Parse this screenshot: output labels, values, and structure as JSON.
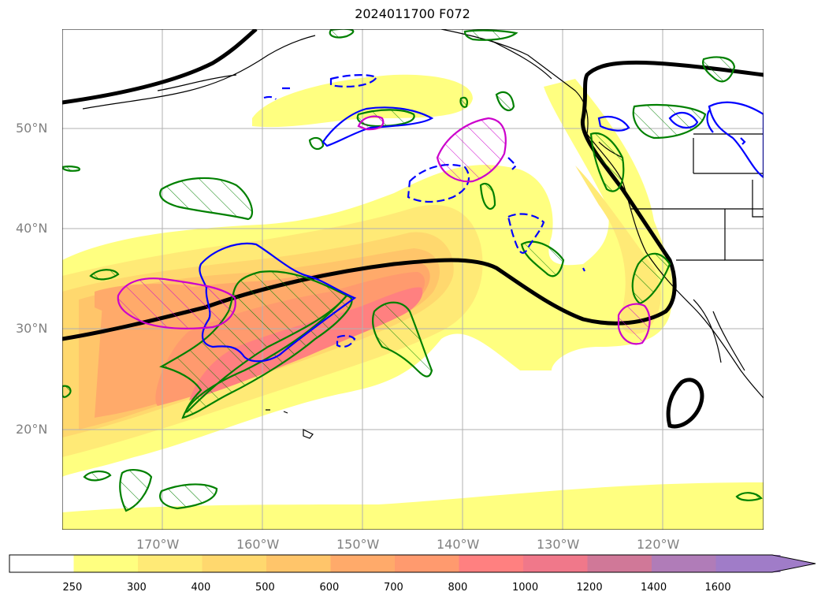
{
  "title": "2024011700 F072",
  "latitude_labels": [
    "50°N",
    "40°N",
    "30°N",
    "20°N"
  ],
  "longitude_labels": [
    "170°W",
    "160°W",
    "150°W",
    "140°W",
    "130°W",
    "120°W"
  ],
  "colorbar": {
    "ticks": [
      "250",
      "300",
      "400",
      "500",
      "600",
      "700",
      "800",
      "1000",
      "1200",
      "1400",
      "1600"
    ],
    "colors": [
      "#ffffff",
      "#ffff80",
      "#ffea76",
      "#ffd86e",
      "#ffc56a",
      "#ffaa6a",
      "#ff9a6e",
      "#ff8080",
      "#f0788a",
      "#d07898",
      "#b07cb8",
      "#a07cc8"
    ],
    "extend": "max"
  },
  "map": {
    "extent_lon": [
      -180,
      -110
    ],
    "extent_lat": [
      10,
      60
    ],
    "gridlines": true,
    "contour_colors": {
      "black_line": "#000000",
      "blue_contours": "#0000ff",
      "magenta_contours": "#cc00cc",
      "green_hatched_contours": "#008000"
    }
  }
}
